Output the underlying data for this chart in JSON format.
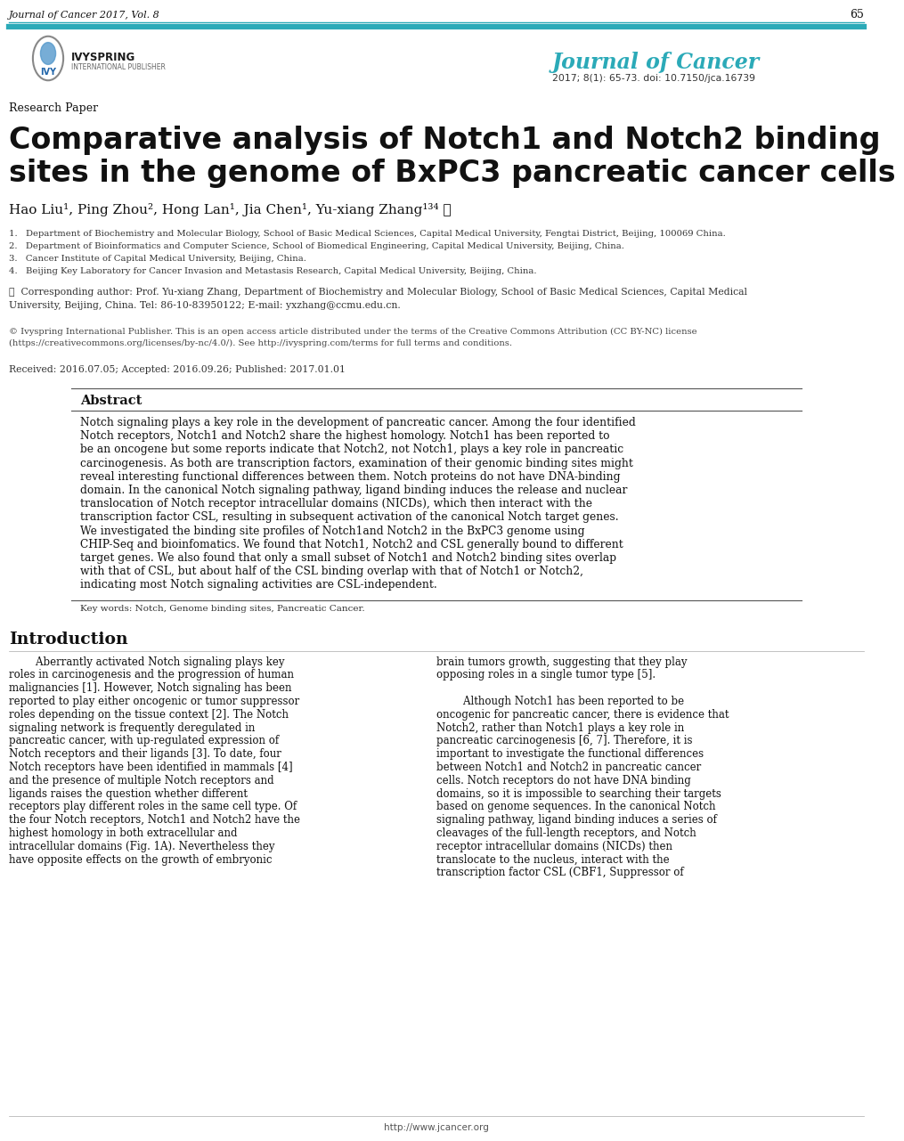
{
  "header_journal": "Journal of Cancer 2017, Vol. 8",
  "header_page": "65",
  "header_line_color": "#2baab8",
  "journal_title_right": "Journal of Cancer",
  "journal_subtitle_right": "2017; 8(1): 65-73. doi: 10.7150/jca.16739",
  "research_paper_label": "Research Paper",
  "main_title_line1": "Comparative analysis of Notch1 and Notch2 binding",
  "main_title_line2": "sites in the genome of BxPC3 pancreatic cancer cells",
  "authors_line": "Hao Liu¹, Ping Zhou², Hong Lan¹, Jia Chen¹, Yu-xiang Zhang¹³⁴ ✉",
  "affiliations": [
    "1.   Department of Biochemistry and Molecular Biology, School of Basic Medical Sciences, Capital Medical University, Fengtai District, Beijing, 100069 China.",
    "2.   Department of Bioinformatics and Computer Science, School of Biomedical Engineering, Capital Medical University, Beijing, China.",
    "3.   Cancer Institute of Capital Medical University, Beijing, China.",
    "4.   Beijing Key Laboratory for Cancer Invasion and Metastasis Research, Capital Medical University, Beijing, China."
  ],
  "corresponding_line1": "✉  Corresponding author: Prof. Yu-xiang Zhang, Department of Biochemistry and Molecular Biology, School of Basic Medical Sciences, Capital Medical",
  "corresponding_line2": "University, Beijing, China. Tel: 86-10-83950122; E-mail: yxzhang@ccmu.edu.cn.",
  "copyright_line1": "© Ivyspring International Publisher. This is an open access article distributed under the terms of the Creative Commons Attribution (CC BY-NC) license",
  "copyright_line2": "(https://creativecommons.org/licenses/by-nc/4.0/). See http://ivyspring.com/terms for full terms and conditions.",
  "received": "Received: 2016.07.05; Accepted: 2016.09.26; Published: 2017.01.01",
  "abstract_title": "Abstract",
  "abstract_lines": [
    "Notch signaling plays a key role in the development of pancreatic cancer. Among the four identified",
    "Notch receptors, Notch1 and Notch2 share the highest homology. Notch1 has been reported to",
    "be an oncogene but some reports indicate that Notch2, not Notch1, plays a key role in pancreatic",
    "carcinogenesis. As both are transcription factors, examination of their genomic binding sites might",
    "reveal interesting functional differences between them. Notch proteins do not have DNA-binding",
    "domain. In the canonical Notch signaling pathway, ligand binding induces the release and nuclear",
    "translocation of Notch receptor intracellular domains (NICDs), which then interact with the",
    "transcription factor CSL, resulting in subsequent activation of the canonical Notch target genes.",
    "We investigated the binding site profiles of Notch1and Notch2 in the BxPC3 genome using",
    "CHIP-Seq and bioinfomatics. We found that Notch1, Notch2 and CSL generally bound to different",
    "target genes. We also found that only a small subset of Notch1 and Notch2 binding sites overlap",
    "with that of CSL, but about half of the CSL binding overlap with that of Notch1 or Notch2,",
    "indicating most Notch signaling activities are CSL-independent."
  ],
  "keywords": "Key words: Notch, Genome binding sites, Pancreatic Cancer.",
  "intro_title": "Introduction",
  "intro_indent": "        Aberrantly activated Notch signaling plays key",
  "intro_col1_lines": [
    "        Aberrantly activated Notch signaling plays key",
    "roles in carcinogenesis and the progression of human",
    "malignancies [1]. However, Notch signaling has been",
    "reported to play either oncogenic or tumor suppressor",
    "roles depending on the tissue context [2]. The Notch",
    "signaling network is frequently deregulated in",
    "pancreatic cancer, with up-regulated expression of",
    "Notch receptors and their ligands [3]. To date, four",
    "Notch receptors have been identified in mammals [4]",
    "and the presence of multiple Notch receptors and",
    "ligands raises the question whether different",
    "receptors play different roles in the same cell type. Of",
    "the four Notch receptors, Notch1 and Notch2 have the",
    "highest homology in both extracellular and",
    "intracellular domains (Fig. 1A). Nevertheless they",
    "have opposite effects on the growth of embryonic"
  ],
  "intro_col2_lines": [
    "brain tumors growth, suggesting that they play",
    "opposing roles in a single tumor type [5].",
    "",
    "        Although Notch1 has been reported to be",
    "oncogenic for pancreatic cancer, there is evidence that",
    "Notch2, rather than Notch1 plays a key role in",
    "pancreatic carcinogenesis [6, 7]. Therefore, it is",
    "important to investigate the functional differences",
    "between Notch1 and Notch2 in pancreatic cancer",
    "cells. Notch receptors do not have DNA binding",
    "domains, so it is impossible to searching their targets",
    "based on genome sequences. In the canonical Notch",
    "signaling pathway, ligand binding induces a series of",
    "cleavages of the full-length receptors, and Notch",
    "receptor intracellular domains (NICDs) then",
    "translocate to the nucleus, interact with the",
    "transcription factor CSL (CBF1, Suppressor of"
  ],
  "footer_url": "http://www.jcancer.org",
  "bg_color": "#ffffff"
}
